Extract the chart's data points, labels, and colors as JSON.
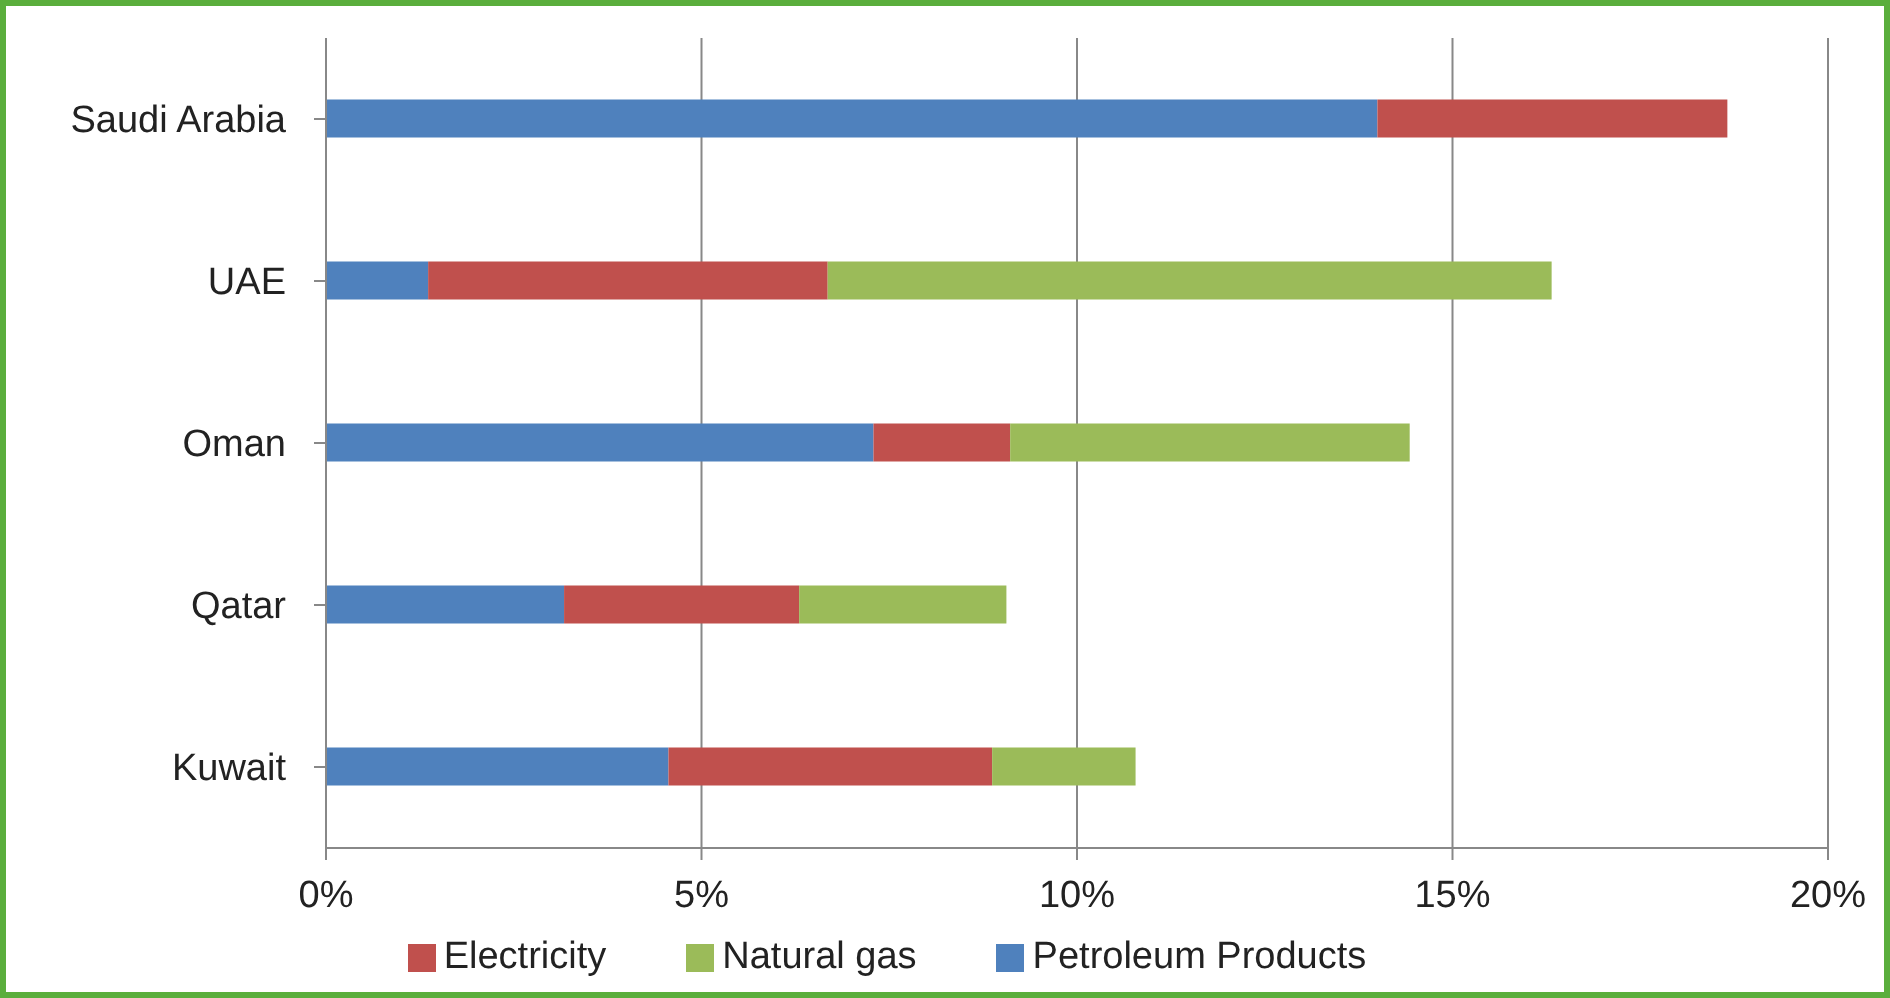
{
  "chart_data": {
    "type": "bar",
    "orientation": "horizontal",
    "stacked": true,
    "categories": [
      "Saudi Arabia",
      "UAE",
      "Oman",
      "Qatar",
      "Kuwait"
    ],
    "series": [
      {
        "name": "Petroleum Products",
        "color": "#4f81bd",
        "values": [
          14.0,
          1.36,
          7.29,
          3.17,
          4.56
        ]
      },
      {
        "name": "Electricity",
        "color": "#c0504d",
        "values": [
          4.66,
          5.32,
          1.82,
          3.13,
          4.31
        ]
      },
      {
        "name": "Natural gas",
        "color": "#9bbb59",
        "values": [
          null,
          9.64,
          5.32,
          2.76,
          1.91
        ]
      }
    ],
    "xlim": [
      0,
      20
    ],
    "xticks": [
      {
        "value": 0,
        "label": "0%"
      },
      {
        "value": 5,
        "label": "5%"
      },
      {
        "value": 10,
        "label": "10%"
      },
      {
        "value": 15,
        "label": "15%"
      },
      {
        "value": 20,
        "label": "20%"
      }
    ],
    "grid": "x",
    "legend": "bottom"
  }
}
